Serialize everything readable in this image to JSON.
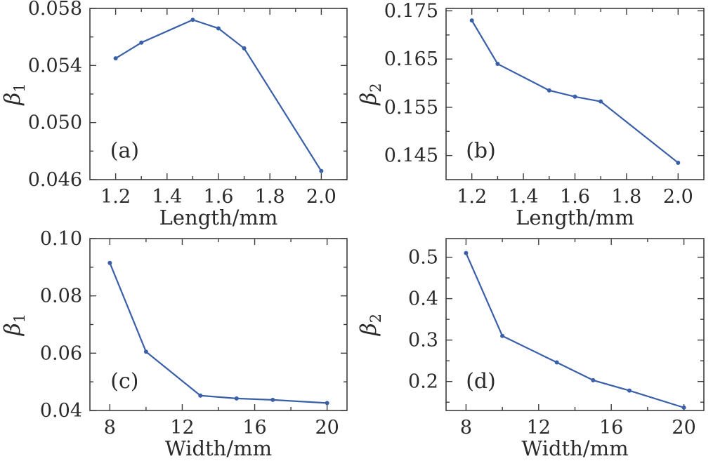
{
  "figure": {
    "background": "#ffffff",
    "line_color": "#3a5fa9",
    "marker_color": "#3a5fa9",
    "axis_color": "#3d3d3d",
    "text_color": "#2a2a2a"
  },
  "chart_data": [
    {
      "type": "line",
      "panel_label": "(a)",
      "xlabel": "Length/mm",
      "ylabel": "β",
      "ylabel_sub": "1",
      "x": [
        1.2,
        1.3,
        1.5,
        1.6,
        1.7,
        2.0
      ],
      "y": [
        0.0545,
        0.0556,
        0.0572,
        0.0566,
        0.0552,
        0.0466
      ],
      "xlim": [
        1.1,
        2.1
      ],
      "ylim": [
        0.046,
        0.058
      ],
      "xtick_vals": [
        1.2,
        1.4,
        1.6,
        1.8,
        2.0
      ],
      "xtick_labels": [
        "1.2",
        "1.4",
        "1.6",
        "1.8",
        "2.0"
      ],
      "xminor": [
        1.3,
        1.5,
        1.7,
        1.9
      ],
      "ytick_vals": [
        0.046,
        0.05,
        0.054,
        0.058
      ],
      "ytick_labels": [
        "0.046",
        "0.050",
        "0.054",
        "0.058"
      ],
      "yminor": [
        0.048,
        0.052,
        0.056
      ],
      "grid": false,
      "legend": null
    },
    {
      "type": "line",
      "panel_label": "(b)",
      "xlabel": "Length/mm",
      "ylabel": "β",
      "ylabel_sub": "2",
      "x": [
        1.2,
        1.3,
        1.5,
        1.6,
        1.7,
        2.0
      ],
      "y": [
        0.173,
        0.164,
        0.1585,
        0.1572,
        0.1562,
        0.1435
      ],
      "xlim": [
        1.1,
        2.1
      ],
      "ylim": [
        0.14,
        0.1755
      ],
      "xtick_vals": [
        1.2,
        1.4,
        1.6,
        1.8,
        2.0
      ],
      "xtick_labels": [
        "1.2",
        "1.4",
        "1.6",
        "1.8",
        "2.0"
      ],
      "xminor": [
        1.3,
        1.5,
        1.7,
        1.9
      ],
      "ytick_vals": [
        0.145,
        0.155,
        0.165,
        0.175
      ],
      "ytick_labels": [
        "0.145",
        "0.155",
        "0.165",
        "0.175"
      ],
      "yminor": [
        0.15,
        0.16,
        0.17
      ],
      "grid": false,
      "legend": null
    },
    {
      "type": "line",
      "panel_label": "(c)",
      "xlabel": "Width/mm",
      "ylabel": "β",
      "ylabel_sub": "1",
      "x": [
        8,
        10,
        13,
        15,
        17,
        20
      ],
      "y": [
        0.0915,
        0.0605,
        0.0452,
        0.0442,
        0.0437,
        0.0426
      ],
      "xlim": [
        6.9,
        21.1
      ],
      "ylim": [
        0.04,
        0.1
      ],
      "xtick_vals": [
        8,
        12,
        16,
        20
      ],
      "xtick_labels": [
        "8",
        "12",
        "16",
        "20"
      ],
      "xminor": [
        10,
        14,
        18
      ],
      "ytick_vals": [
        0.04,
        0.06,
        0.08,
        0.1
      ],
      "ytick_labels": [
        "0.04",
        "0.06",
        "0.08",
        "0.10"
      ],
      "yminor": [
        0.05,
        0.07,
        0.09
      ],
      "grid": false,
      "legend": null
    },
    {
      "type": "line",
      "panel_label": "(d)",
      "xlabel": "Width/mm",
      "ylabel": "β",
      "ylabel_sub": "2",
      "x": [
        8,
        10,
        13,
        15,
        17,
        20
      ],
      "y": [
        0.51,
        0.31,
        0.246,
        0.203,
        0.178,
        0.137
      ],
      "xlim": [
        6.9,
        21.1
      ],
      "ylim": [
        0.13,
        0.545
      ],
      "xtick_vals": [
        8,
        12,
        16,
        20
      ],
      "xtick_labels": [
        "8",
        "12",
        "16",
        "20"
      ],
      "xminor": [
        10,
        14,
        18
      ],
      "ytick_vals": [
        0.2,
        0.3,
        0.4,
        0.5
      ],
      "ytick_labels": [
        "0.2",
        "0.3",
        "0.4",
        "0.5"
      ],
      "yminor": [
        0.15,
        0.25,
        0.35,
        0.45
      ],
      "grid": false,
      "legend": null
    }
  ]
}
